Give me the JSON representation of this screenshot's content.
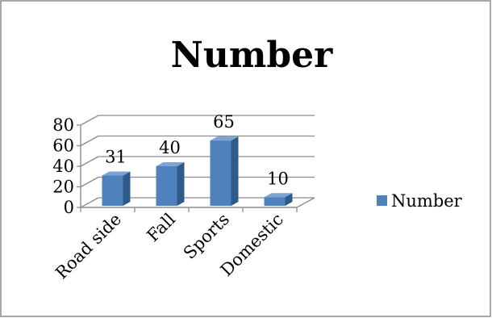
{
  "chart_data": {
    "type": "bar",
    "title": "Number",
    "categories": [
      "Road side",
      "Fall",
      "Sports",
      "Domestic"
    ],
    "series": [
      {
        "name": "Number",
        "values": [
          31,
          40,
          65,
          10
        ]
      }
    ],
    "ylim": [
      0,
      80
    ],
    "yticks": [
      0,
      20,
      40,
      60,
      80
    ],
    "grid": true,
    "legend": "right",
    "colors": {
      "bar_front": "#4f81bd",
      "bar_side": "#2f5b8a",
      "bar_top": "#7aa3d6",
      "grid": "#8c8c8c",
      "border": "#888888"
    }
  }
}
